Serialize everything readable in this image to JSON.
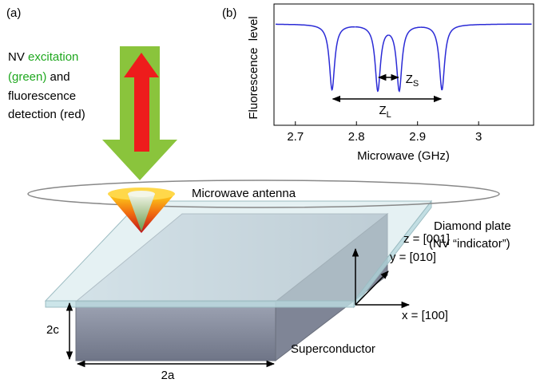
{
  "panel_a": {
    "label": "(a)",
    "arrow_text": {
      "nv": "NV",
      "excitation": "excitation",
      "green": "(green)",
      "and": "and",
      "fluorescence": "fluorescence",
      "detection": "detection (red)"
    },
    "antenna": "Microwave antenna",
    "plate": [
      "Diamond plate",
      "(NV “indicator”)"
    ],
    "axes": {
      "z": "z = [001]",
      "y": "y = [010]",
      "x": "x = [100]"
    },
    "dim_c": "2c",
    "dim_a": "2a",
    "superconductor": "Superconductor"
  },
  "chart_data": {
    "type": "line",
    "label": "(b)",
    "ylabel": "Fluorescence  level",
    "xlabel": "Microwave (GHz)",
    "dips": [
      2.76,
      2.835,
      2.87,
      2.94
    ],
    "xlim": [
      2.665,
      3.09
    ],
    "xticks": [
      2.7,
      2.8,
      2.9,
      3
    ],
    "color": "#2b2bd6",
    "annotations": {
      "zs": {
        "text": "Z",
        "sub": "S"
      },
      "zl": {
        "text": "Z",
        "sub": "L"
      }
    }
  }
}
